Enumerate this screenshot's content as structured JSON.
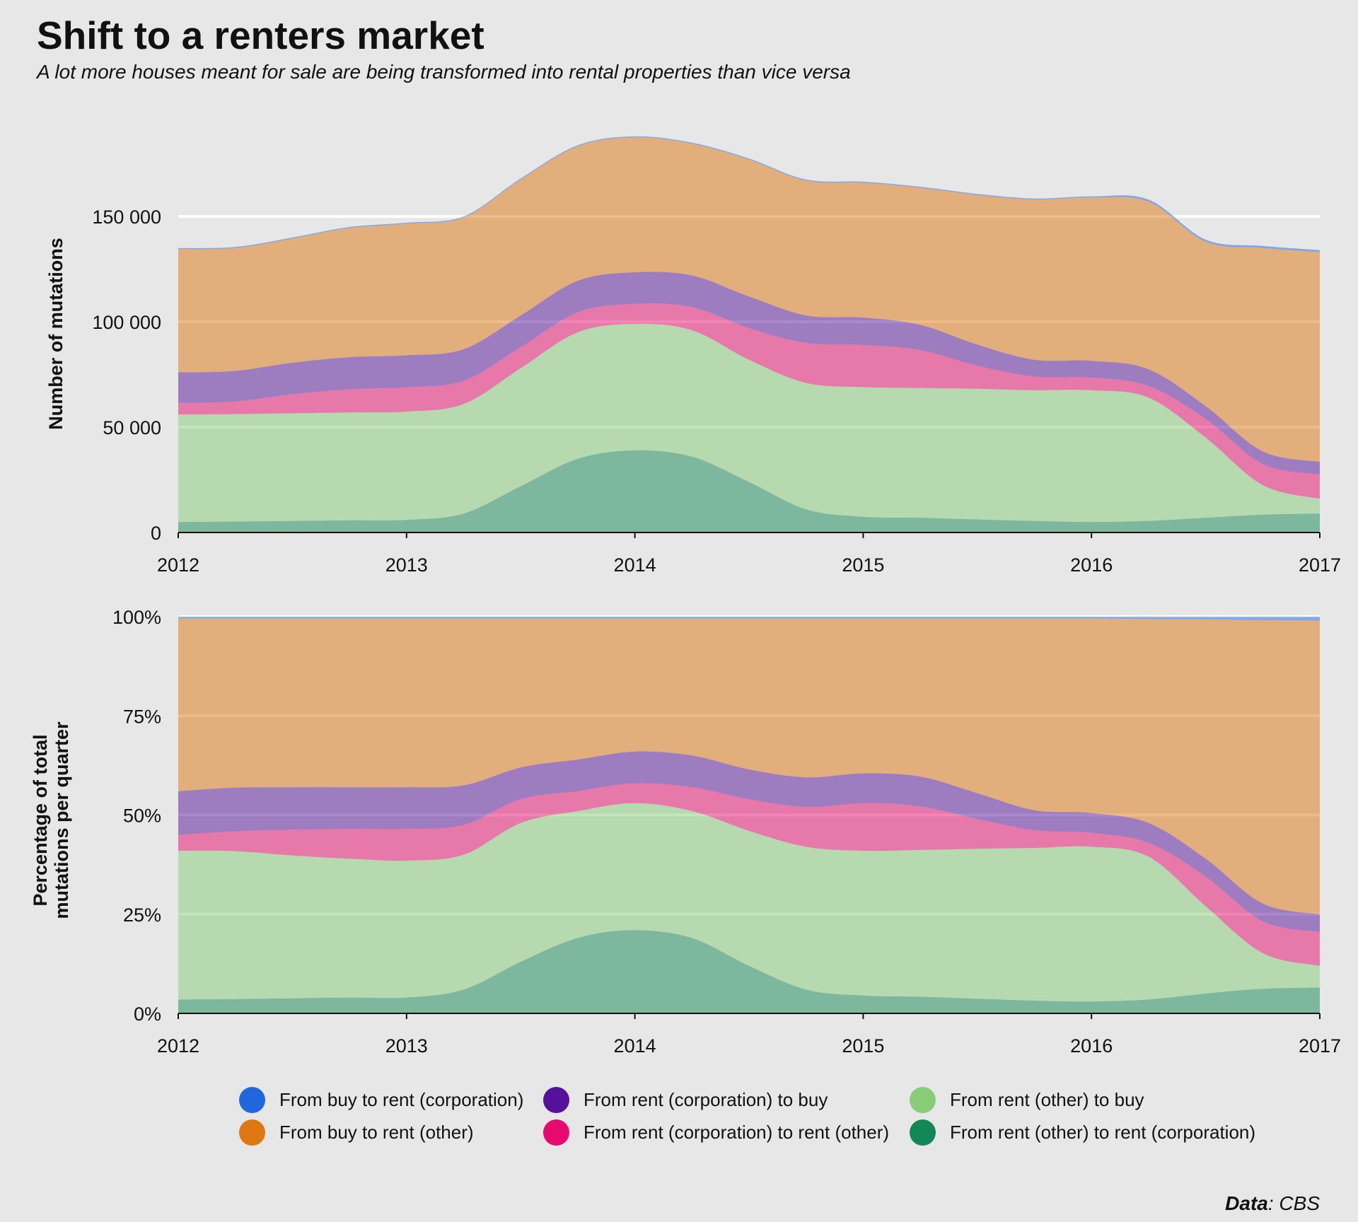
{
  "title": "Shift to a renters market",
  "subtitle": "A lot more houses meant for sale are being transformed into rental properties than vice versa",
  "source": {
    "label": "Data",
    "value": ": CBS"
  },
  "colors": {
    "buy_rent_corp": "#2266dd",
    "buy_rent_other": "#dd7711",
    "rent_corp_buy": "#55119a",
    "rent_corp_rent_other": "#e6096e",
    "rent_other_buy": "#88cc77",
    "rent_other_rent_corp": "#118855"
  },
  "legend": [
    {
      "label": "From buy to rent (corporation)",
      "color": "#2266dd"
    },
    {
      "label": "From buy to rent (other)",
      "color": "#dd7711"
    },
    {
      "label": "From rent (corporation) to buy",
      "color": "#55119a"
    },
    {
      "label": "From rent (corporation) to rent (other)",
      "color": "#e6096e"
    },
    {
      "label": "From rent (other) to buy",
      "color": "#88cc77"
    },
    {
      "label": "From rent (other) to rent (corporation)",
      "color": "#118855"
    }
  ],
  "chart_data": [
    {
      "type": "area",
      "stacked": true,
      "ylabel": "Number of mutations",
      "x": [
        2012,
        2012.25,
        2012.5,
        2012.75,
        2013,
        2013.25,
        2013.5,
        2013.75,
        2014,
        2014.25,
        2014.5,
        2014.75,
        2015,
        2015.25,
        2015.5,
        2015.75,
        2016,
        2016.25,
        2016.5,
        2016.75,
        2017
      ],
      "xticks": [
        "2012",
        "2013",
        "2014",
        "2015",
        "2016",
        "2017"
      ],
      "ylim": [
        0,
        195000
      ],
      "yticks": [
        0,
        50000,
        100000,
        150000
      ],
      "ytick_labels": [
        "0",
        "50 000",
        "100 000",
        "150 000"
      ],
      "grid": true,
      "series": [
        {
          "name": "From rent (other) to rent (corporation)",
          "color": "#118855",
          "values": [
            5000,
            5200,
            5500,
            5800,
            6000,
            9000,
            22000,
            35000,
            39000,
            36000,
            24000,
            11000,
            7500,
            7000,
            6200,
            5500,
            5000,
            5500,
            7000,
            8500,
            9000
          ]
        },
        {
          "name": "From rent (other) to buy",
          "color": "#88cc77",
          "values": [
            51000,
            51000,
            51100,
            51200,
            51400,
            52000,
            56000,
            60000,
            60000,
            60000,
            58000,
            60000,
            61500,
            61600,
            62000,
            62000,
            62500,
            58500,
            38000,
            14000,
            7000
          ]
        },
        {
          "name": "From rent (corporation) to rent (other)",
          "color": "#e6096e",
          "values": [
            5500,
            6000,
            9000,
            11000,
            11500,
            11000,
            10000,
            9500,
            9500,
            11000,
            15000,
            19000,
            20000,
            18000,
            11000,
            6500,
            6000,
            5500,
            9000,
            10000,
            11500
          ]
        },
        {
          "name": "From rent (corporation) to buy",
          "color": "#55119a",
          "values": [
            14500,
            14500,
            15000,
            15200,
            15200,
            15000,
            15000,
            15000,
            15000,
            15000,
            15000,
            13000,
            13000,
            12000,
            10000,
            8000,
            8000,
            8000,
            6000,
            6000,
            6000
          ]
        },
        {
          "name": "From buy to rent (other)",
          "color": "#dd7711",
          "values": [
            58500,
            58300,
            58900,
            61300,
            62400,
            62500,
            64500,
            63800,
            64000,
            62500,
            65000,
            64000,
            64000,
            65000,
            71000,
            76000,
            77500,
            79500,
            78000,
            96500,
            99500
          ]
        },
        {
          "name": "From buy to rent (corporation)",
          "color": "#2266dd",
          "values": [
            500,
            500,
            500,
            500,
            500,
            500,
            500,
            500,
            500,
            500,
            500,
            500,
            500,
            500,
            500,
            500,
            500,
            1000,
            1000,
            1000,
            1000
          ]
        }
      ]
    },
    {
      "type": "area",
      "stacked": true,
      "ylabel": [
        "Percentage of total",
        "mutations per quarter"
      ],
      "x": [
        2012,
        2012.25,
        2012.5,
        2012.75,
        2013,
        2013.25,
        2013.5,
        2013.75,
        2014,
        2014.25,
        2014.5,
        2014.75,
        2015,
        2015.25,
        2015.5,
        2015.75,
        2016,
        2016.25,
        2016.5,
        2016.75,
        2017
      ],
      "xticks": [
        "2012",
        "2013",
        "2014",
        "2015",
        "2016",
        "2017"
      ],
      "ylim": [
        0,
        100
      ],
      "yticks": [
        0,
        25,
        50,
        75,
        100
      ],
      "ytick_labels": [
        "0%",
        "25%",
        "50%",
        "75%",
        "100%"
      ],
      "grid": true,
      "series": [
        {
          "name": "From rent (other) to rent (corporation)",
          "color": "#118855",
          "values": [
            3.5,
            3.6,
            3.8,
            4.0,
            4.0,
            6.0,
            13.0,
            19.0,
            21.0,
            19.0,
            12.0,
            6.0,
            4.5,
            4.2,
            3.7,
            3.2,
            3.0,
            3.5,
            5.0,
            6.2,
            6.5
          ]
        },
        {
          "name": "From rent (other) to buy",
          "color": "#88cc77",
          "values": [
            37.5,
            37.3,
            36.0,
            35.0,
            34.5,
            34.0,
            35.0,
            32.0,
            32.0,
            32.0,
            34.0,
            36.0,
            36.5,
            37.0,
            37.8,
            38.5,
            39.0,
            36.0,
            22.0,
            9.0,
            5.5
          ]
        },
        {
          "name": "From rent (corporation) to rent (other)",
          "color": "#e6096e",
          "values": [
            4.0,
            5.0,
            6.5,
            7.5,
            8.0,
            7.5,
            6.0,
            5.0,
            5.0,
            6.0,
            8.0,
            10.0,
            12.0,
            11.0,
            7.5,
            4.5,
            3.5,
            3.5,
            7.5,
            8.0,
            8.5
          ]
        },
        {
          "name": "From rent (corporation) to buy",
          "color": "#55119a",
          "values": [
            11.0,
            11.0,
            10.7,
            10.5,
            10.5,
            10.0,
            8.0,
            8.0,
            8.0,
            8.0,
            7.5,
            7.5,
            7.5,
            7.5,
            6.5,
            5.0,
            5.0,
            5.0,
            4.5,
            4.5,
            4.5
          ]
        },
        {
          "name": "From buy to rent (other)",
          "color": "#dd7711",
          "values": [
            43.5,
            42.6,
            42.5,
            42.5,
            42.5,
            42.0,
            37.5,
            35.5,
            33.5,
            34.5,
            38.0,
            40.0,
            39.0,
            39.8,
            44.0,
            48.3,
            49.0,
            51.4,
            60.3,
            71.4,
            74.0
          ]
        },
        {
          "name": "From buy to rent (corporation)",
          "color": "#2266dd",
          "values": [
            0.5,
            0.5,
            0.5,
            0.5,
            0.5,
            0.5,
            0.5,
            0.5,
            0.5,
            0.5,
            0.5,
            0.5,
            0.5,
            0.5,
            0.5,
            0.5,
            0.5,
            0.6,
            0.7,
            0.9,
            1.0
          ]
        }
      ]
    }
  ]
}
